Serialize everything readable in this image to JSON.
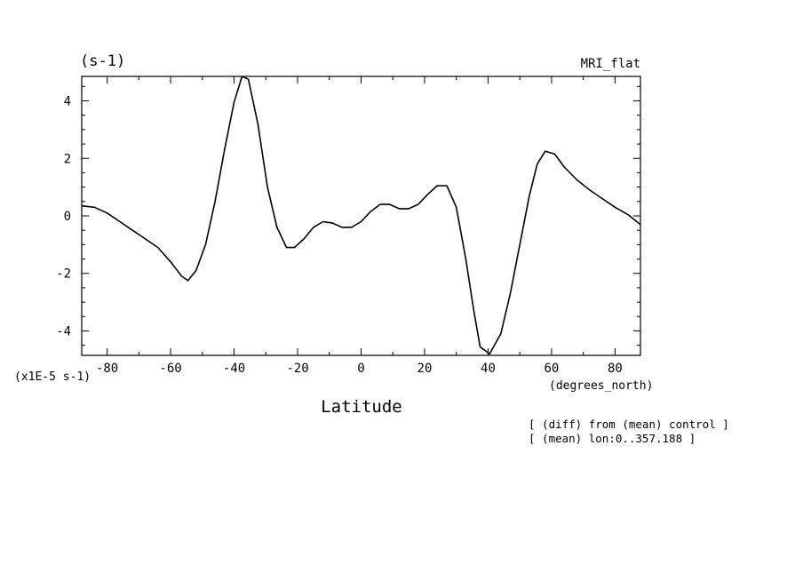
{
  "header": {
    "unit_label": "(s-1)",
    "model_label": "MRI_flat"
  },
  "footer": {
    "scale_label": "(x1E-5 s-1)",
    "x_unit_label": "(degrees_north)",
    "x_title": "Latitude",
    "note_line1": "[ (diff) from (mean) control ]",
    "note_line2": "[ (mean) lon:0..357.188 ]"
  },
  "chart_data": {
    "type": "line",
    "title": "",
    "xlabel": "Latitude",
    "ylabel": "(s-1)",
    "xlim": [
      -88,
      88
    ],
    "ylim": [
      -4.85,
      4.85
    ],
    "grid": false,
    "x_ticks": [
      -80,
      -60,
      -40,
      -20,
      0,
      20,
      40,
      60,
      80
    ],
    "x_tick_labels": [
      "-80",
      "-60",
      "-40",
      "-20",
      "0",
      "20",
      "40",
      "60",
      "80"
    ],
    "y_ticks": [
      -4,
      -2,
      0,
      2,
      4
    ],
    "y_tick_labels": [
      "-4",
      "-2",
      "0",
      "2",
      "4"
    ],
    "series": [
      {
        "x": [
          -88,
          -84,
          -80,
          -76,
          -72,
          -68,
          -64,
          -60,
          -56.5,
          -54.5,
          -52,
          -49,
          -46,
          -43,
          -40,
          -37.5,
          -35.5,
          -32.5,
          -29.5,
          -26.5,
          -23.5,
          -21,
          -18,
          -15,
          -12,
          -9,
          -6,
          -3,
          0,
          3,
          6,
          9,
          12,
          15,
          18,
          21,
          24,
          27,
          30,
          33,
          35.5,
          37.5,
          40.5,
          44,
          47,
          50,
          53,
          55.5,
          58,
          61,
          64,
          68,
          72,
          76,
          80,
          84,
          88
        ],
        "y": [
          0.35,
          0.3,
          0.1,
          -0.2,
          -0.5,
          -0.8,
          -1.1,
          -1.6,
          -2.1,
          -2.25,
          -1.9,
          -1.0,
          0.5,
          2.3,
          3.95,
          4.85,
          4.75,
          3.2,
          1.0,
          -0.4,
          -1.1,
          -1.1,
          -0.8,
          -0.4,
          -0.2,
          -0.25,
          -0.4,
          -0.4,
          -0.2,
          0.15,
          0.4,
          0.4,
          0.25,
          0.25,
          0.4,
          0.75,
          1.05,
          1.05,
          0.3,
          -1.5,
          -3.3,
          -4.55,
          -4.8,
          -4.1,
          -2.7,
          -1.0,
          0.7,
          1.8,
          2.25,
          2.15,
          1.7,
          1.25,
          0.9,
          0.6,
          0.3,
          0.05,
          -0.3
        ]
      }
    ]
  }
}
